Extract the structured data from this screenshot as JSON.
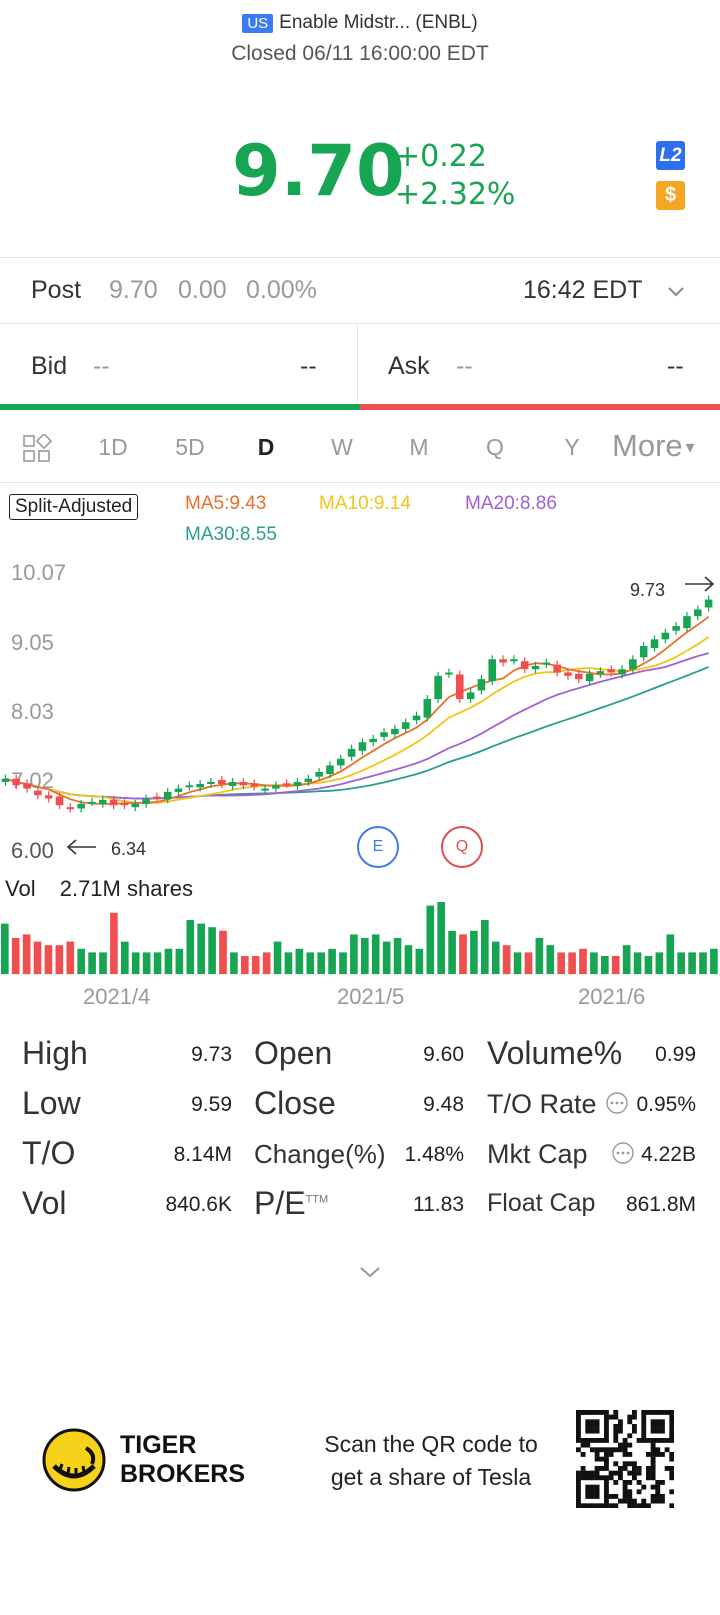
{
  "header": {
    "market_badge": "US",
    "stock_name": "Enable Midstr... (ENBL)",
    "status": "Closed 06/11 16:00:00 EDT"
  },
  "quote": {
    "price": "9.70",
    "change": "+0.22",
    "change_pct": "+2.32%",
    "l2_badge": "L2",
    "dollar_badge": "$",
    "price_color": "#17a553"
  },
  "post": {
    "label": "Post",
    "price": "9.70",
    "change": "0.00",
    "change_pct": "0.00%",
    "time": "16:42 EDT"
  },
  "bidask": {
    "bid_label": "Bid",
    "bid_value": "--",
    "bid_size": "--",
    "ask_label": "Ask",
    "ask_value": "--",
    "ask_size": "--"
  },
  "tabs": [
    {
      "label": "1D"
    },
    {
      "label": "5D"
    },
    {
      "label": "D"
    },
    {
      "label": "W"
    },
    {
      "label": "M"
    },
    {
      "label": "Q"
    },
    {
      "label": "Y"
    },
    {
      "label": "More"
    }
  ],
  "chart_header": {
    "split_label": "Split-Adjusted",
    "ma5": "MA5:9.43",
    "ma10": "MA10:9.14",
    "ma20": "MA20:8.86",
    "ma30": "MA30:8.55",
    "ma5_color": "#e8702a",
    "ma10_color": "#f0c419",
    "ma20_color": "#a25fd6",
    "ma30_color": "#2a9d8f"
  },
  "chart_data": {
    "type": "candlestick",
    "y_ticks": [
      "10.07",
      "9.05",
      "8.03",
      "7.02",
      "6.00"
    ],
    "ylim": [
      6.0,
      10.07
    ],
    "high_marker": "9.73",
    "low_marker": "6.34",
    "event_markers": [
      "E",
      "Q"
    ],
    "x_ticks": [
      "2021/4",
      "2021/5",
      "2021/6"
    ],
    "closes": [
      7.0,
      6.9,
      6.85,
      6.75,
      6.7,
      6.6,
      6.55,
      6.62,
      6.65,
      6.68,
      6.6,
      6.6,
      6.62,
      6.7,
      6.72,
      6.8,
      6.85,
      6.9,
      6.92,
      6.95,
      6.92,
      6.95,
      6.9,
      6.88,
      6.85,
      6.9,
      6.92,
      6.95,
      7.0,
      7.1,
      7.2,
      7.3,
      7.45,
      7.55,
      7.6,
      7.7,
      7.75,
      7.85,
      7.95,
      8.2,
      8.55,
      8.6,
      8.2,
      8.3,
      8.5,
      8.8,
      8.75,
      8.8,
      8.65,
      8.7,
      8.75,
      8.6,
      8.55,
      8.5,
      8.58,
      8.62,
      8.6,
      8.65,
      8.8,
      9.0,
      9.1,
      9.2,
      9.3,
      9.45,
      9.55,
      9.7
    ],
    "volume": {
      "label": "Vol",
      "value": "2.71M shares",
      "bars": [
        0.7,
        0.5,
        0.55,
        0.45,
        0.4,
        0.4,
        0.45,
        0.35,
        0.3,
        0.3,
        0.85,
        0.45,
        0.3,
        0.3,
        0.3,
        0.35,
        0.35,
        0.75,
        0.7,
        0.65,
        0.6,
        0.3,
        0.25,
        0.25,
        0.3,
        0.45,
        0.3,
        0.35,
        0.3,
        0.3,
        0.35,
        0.3,
        0.55,
        0.5,
        0.55,
        0.45,
        0.5,
        0.4,
        0.35,
        0.95,
        1.0,
        0.6,
        0.55,
        0.6,
        0.75,
        0.45,
        0.4,
        0.3,
        0.3,
        0.5,
        0.4,
        0.3,
        0.3,
        0.35,
        0.3,
        0.25,
        0.25,
        0.4,
        0.3,
        0.25,
        0.3,
        0.55,
        0.3,
        0.3,
        0.3,
        0.35
      ],
      "up_color": "#17a553",
      "down_color": "#f04f4f"
    }
  },
  "stats": [
    {
      "label": "High",
      "value": "9.73"
    },
    {
      "label": "Low",
      "value": "9.59"
    },
    {
      "label": "T/O",
      "value": "8.14M"
    },
    {
      "label": "Vol",
      "value": "840.6K"
    },
    {
      "label": "Open",
      "value": "9.60"
    },
    {
      "label": "Close",
      "value": "9.48"
    },
    {
      "label": "Change(%)",
      "value": "1.48%"
    },
    {
      "label": "P/E",
      "sup": "TTM",
      "value": "11.83"
    },
    {
      "label": "Volume%",
      "value": "0.99"
    },
    {
      "label": "T/O Rate",
      "value": "0.95%"
    },
    {
      "label": "Mkt Cap",
      "value": "4.22B"
    },
    {
      "label": "Float Cap",
      "value": "861.8M"
    }
  ],
  "footer": {
    "brand_line1": "TIGER",
    "brand_line2": "BROKERS",
    "promo_line1": "Scan the QR code to",
    "promo_line2": "get a share of Tesla"
  }
}
